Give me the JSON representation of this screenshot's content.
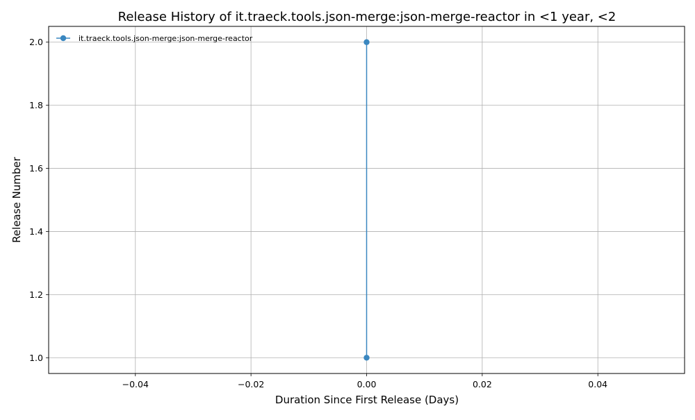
{
  "chart_data": {
    "type": "line",
    "title": "Release History of it.traeck.tools.json-merge:json-merge-reactor in <1 year, <2",
    "xlabel": "Duration Since First Release (Days)",
    "ylabel": "Release Number",
    "xlim": [
      -0.055,
      0.055
    ],
    "ylim": [
      0.95,
      2.05
    ],
    "x_ticks": [
      -0.04,
      -0.02,
      0.0,
      0.02,
      0.04
    ],
    "x_tick_labels": [
      "−0.04",
      "−0.02",
      "0.00",
      "0.02",
      "0.04"
    ],
    "y_ticks": [
      1.0,
      1.2,
      1.4,
      1.6,
      1.8,
      2.0
    ],
    "y_tick_labels": [
      "1.0",
      "1.2",
      "1.4",
      "1.6",
      "1.8",
      "2.0"
    ],
    "grid": true,
    "legend_position": "top-left",
    "series": [
      {
        "name": "it.traeck.tools.json-merge:json-merge-reactor",
        "color": "#3a87c0",
        "marker": "circle",
        "x": [
          0.0,
          0.0
        ],
        "y": [
          1.0,
          2.0
        ]
      }
    ]
  }
}
